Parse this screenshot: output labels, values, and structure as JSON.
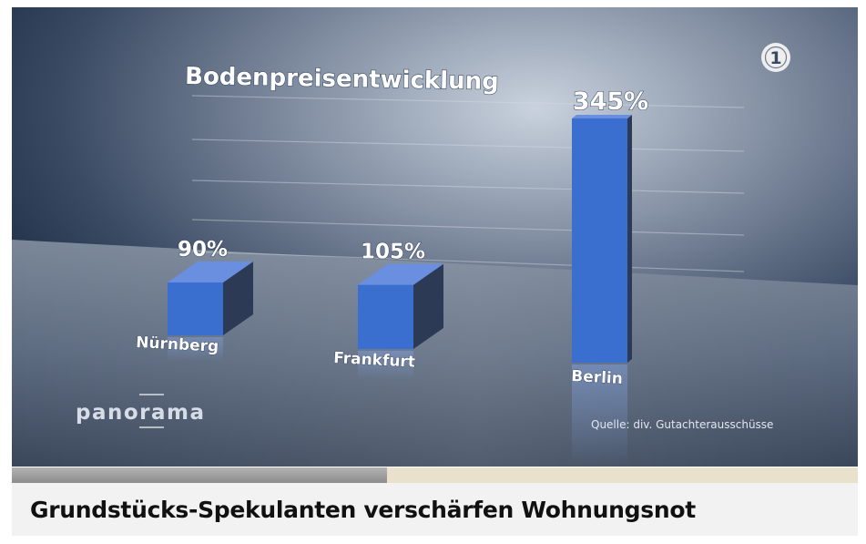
{
  "chart_data": {
    "type": "bar",
    "title": "Bodenpreisentwicklung",
    "categories": [
      "Nürnberg",
      "Frankfurt",
      "Berlin"
    ],
    "values": [
      90,
      105,
      345
    ],
    "value_labels": [
      "90%",
      "105%",
      "345%"
    ],
    "unit": "%",
    "source": "Quelle: div. Gutachterausschüsse",
    "grid": true,
    "bar_color": "#3a6fd0"
  },
  "branding": {
    "show_logo": "panorama",
    "channel_logo": "1"
  },
  "video": {
    "progress": 0.443
  },
  "caption": {
    "headline": "Grundstücks-Spekulanten verschärfen Wohnungsnot"
  }
}
